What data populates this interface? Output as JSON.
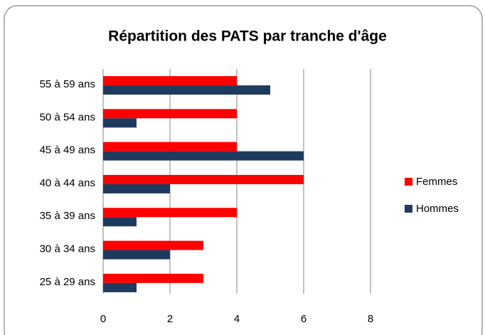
{
  "chart_data": {
    "type": "bar",
    "orientation": "horizontal",
    "title": "Répartition des PATS par tranche d'âge",
    "categories": [
      "25 à 29 ans",
      "30 à 34 ans",
      "35 à 39 ans",
      "40 à 44 ans",
      "45 à 49 ans",
      "50 à 54 ans",
      "55 à 59 ans"
    ],
    "series": [
      {
        "name": "Femmes",
        "color": "#ff0000",
        "values": [
          3,
          3,
          4,
          6,
          4,
          4,
          4
        ]
      },
      {
        "name": "Hommes",
        "color": "#1f3a5f",
        "values": [
          1,
          2,
          1,
          2,
          6,
          1,
          5
        ]
      }
    ],
    "xlim": [
      0,
      8
    ],
    "xticks": [
      0,
      2,
      4,
      6,
      8
    ],
    "grid": true,
    "legend": "right"
  }
}
